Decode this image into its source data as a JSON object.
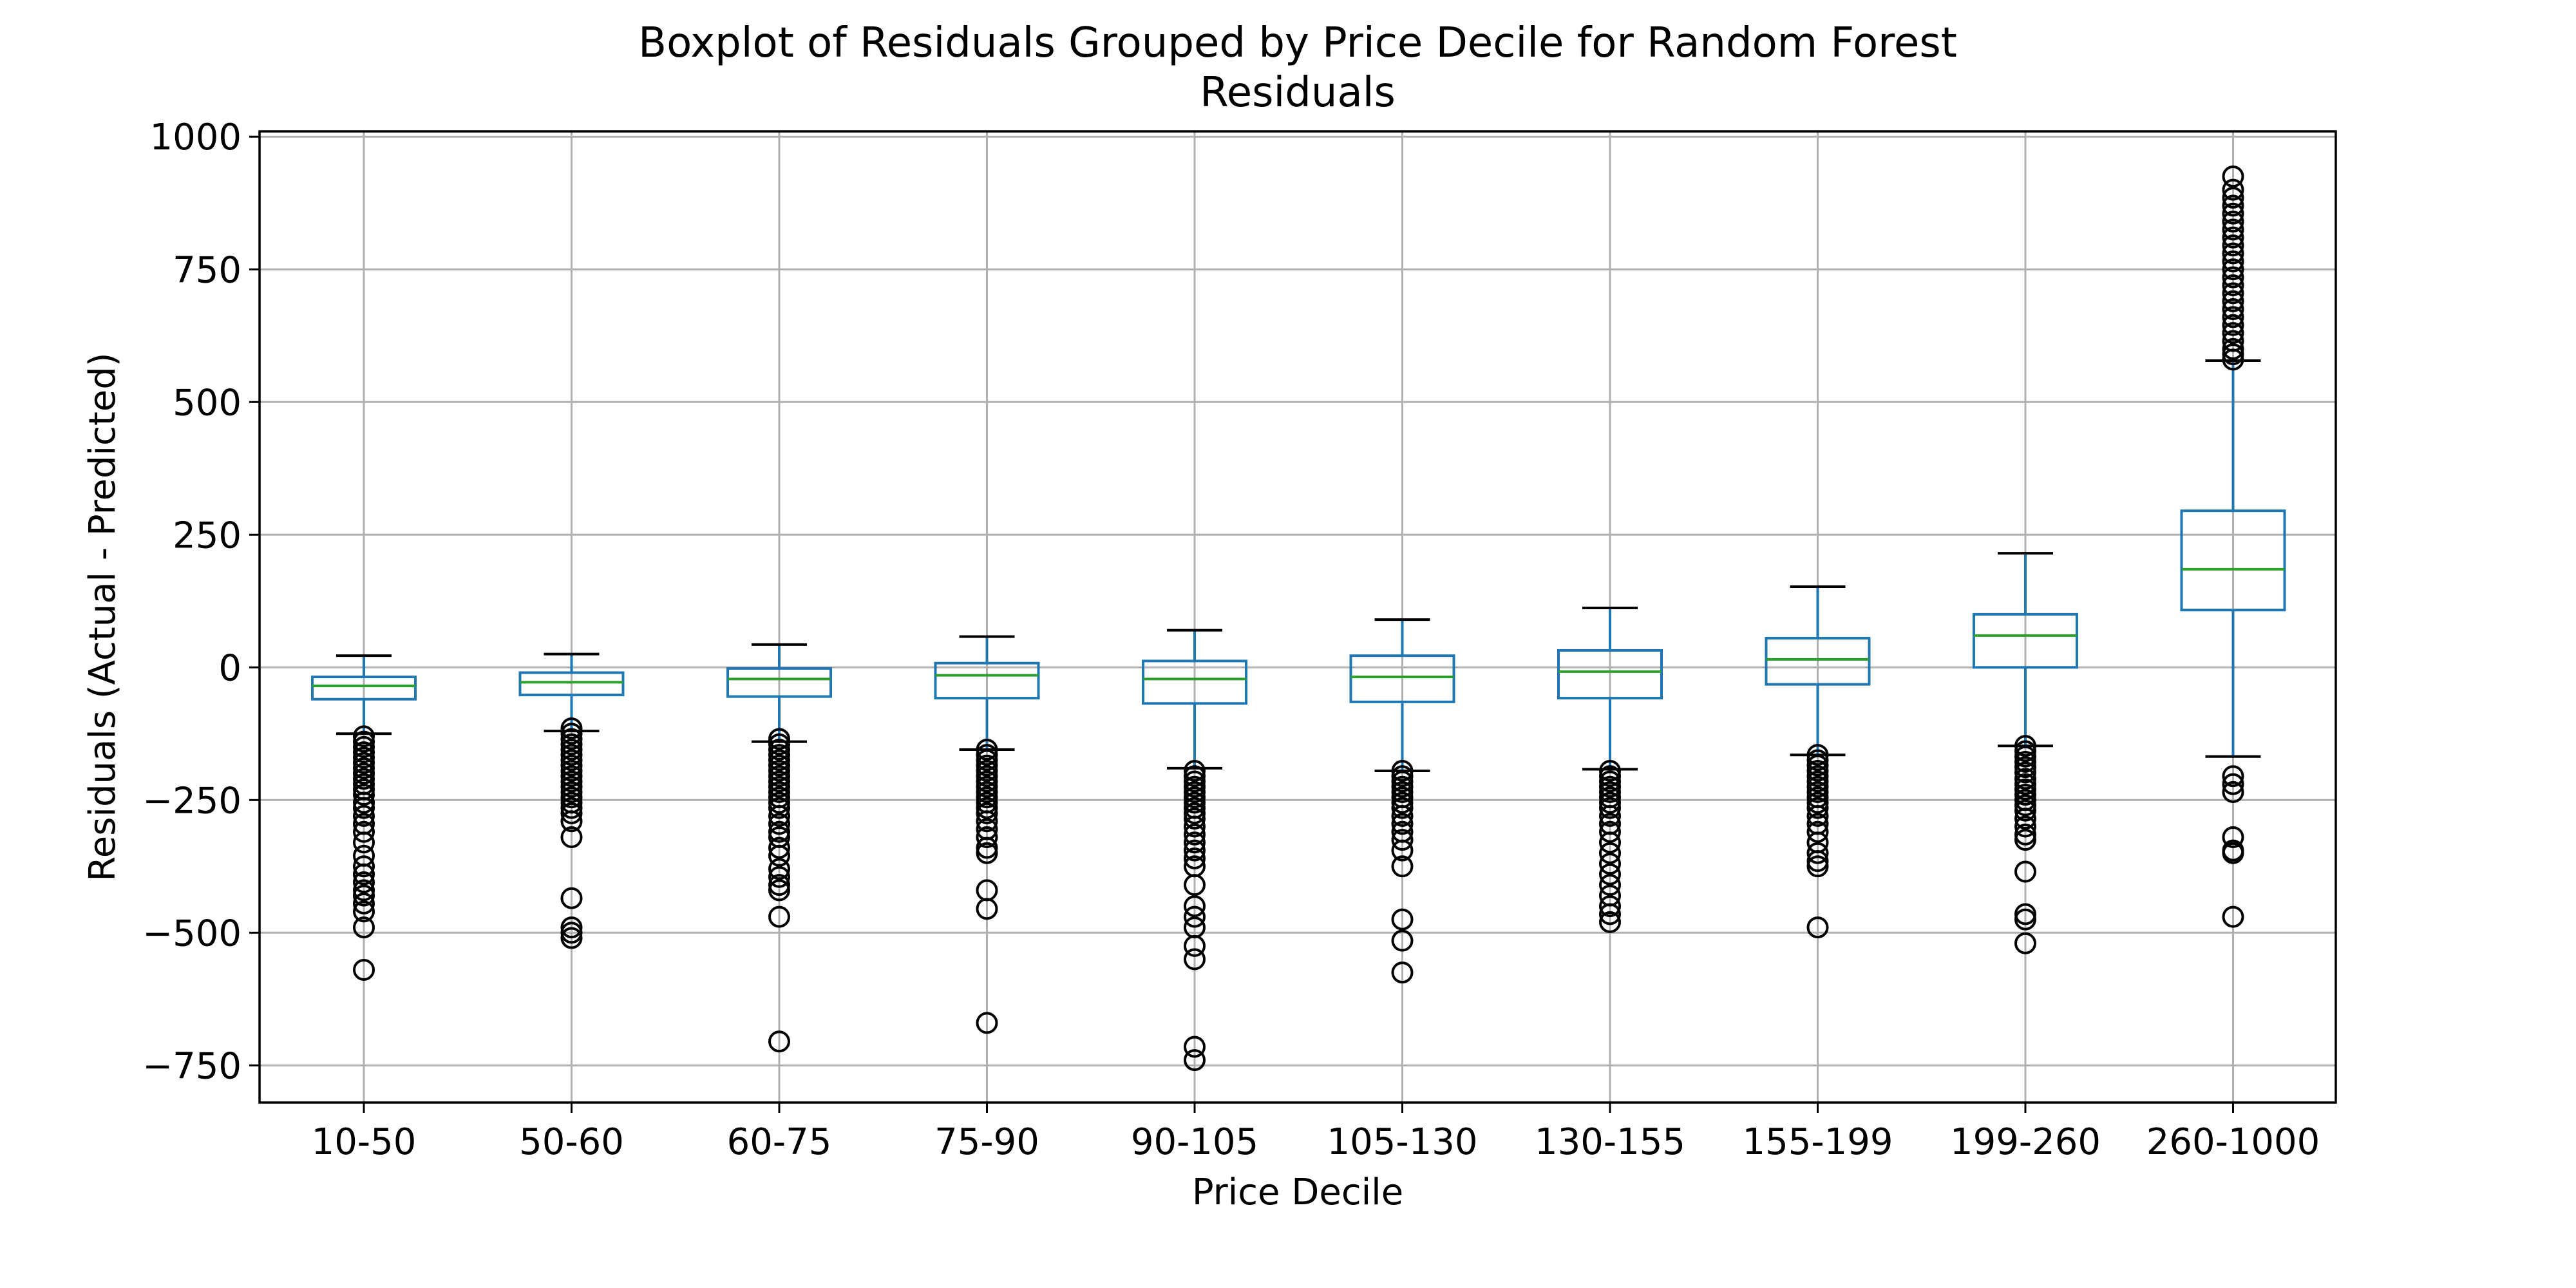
{
  "chart_data": {
    "type": "boxplot",
    "title_lines": [
      "Boxplot of Residuals Grouped by Price Decile for Random Forest",
      "Residuals"
    ],
    "xlabel": "Price Decile",
    "ylabel": "Residuals (Actual - Predicted)",
    "ylim": [
      -820,
      1010
    ],
    "yticks": [
      -750,
      -500,
      -250,
      0,
      250,
      500,
      750,
      1000
    ],
    "ytick_labels": [
      "−750",
      "−500",
      "−250",
      "0",
      "250",
      "500",
      "750",
      "1000"
    ],
    "grid": true,
    "colors": {
      "box": "#1f77b4",
      "median": "#2ca02c",
      "whisker_cap": "#000000",
      "flier": "#000000",
      "grid": "#b0b0b0"
    },
    "categories": [
      "10-50",
      "50-60",
      "60-75",
      "75-90",
      "90-105",
      "105-130",
      "130-155",
      "155-199",
      "199-260",
      "260-1000"
    ],
    "boxes": [
      {
        "category": "10-50",
        "whislo": -125,
        "q1": -60,
        "med": -35,
        "q3": -18,
        "whishi": 22,
        "fliers": [
          -130,
          -140,
          -150,
          -160,
          -170,
          -180,
          -190,
          -200,
          -210,
          -220,
          -230,
          -240,
          -255,
          -265,
          -280,
          -295,
          -310,
          -330,
          -355,
          -375,
          -390,
          -405,
          -420,
          -430,
          -445,
          -460,
          -490,
          -570
        ]
      },
      {
        "category": "50-60",
        "whislo": -120,
        "q1": -52,
        "med": -28,
        "q3": -10,
        "whishi": 25,
        "fliers": [
          -115,
          -125,
          -135,
          -145,
          -155,
          -165,
          -175,
          -185,
          -195,
          -205,
          -215,
          -225,
          -235,
          -245,
          -255,
          -265,
          -275,
          -290,
          -320,
          -435,
          -490,
          -500,
          -510
        ]
      },
      {
        "category": "60-75",
        "whislo": -140,
        "q1": -55,
        "med": -22,
        "q3": -2,
        "whishi": 43,
        "fliers": [
          -135,
          -145,
          -155,
          -165,
          -175,
          -185,
          -195,
          -205,
          -215,
          -225,
          -235,
          -245,
          -255,
          -265,
          -280,
          -295,
          -310,
          -320,
          -340,
          -355,
          -380,
          -395,
          -410,
          -420,
          -470,
          -705
        ]
      },
      {
        "category": "75-90",
        "whislo": -155,
        "q1": -58,
        "med": -15,
        "q3": 8,
        "whishi": 58,
        "fliers": [
          -155,
          -165,
          -175,
          -185,
          -195,
          -205,
          -215,
          -225,
          -235,
          -245,
          -255,
          -265,
          -275,
          -290,
          -305,
          -320,
          -340,
          -350,
          -420,
          -455,
          -670
        ]
      },
      {
        "category": "90-105",
        "whislo": -190,
        "q1": -68,
        "med": -22,
        "q3": 12,
        "whishi": 70,
        "fliers": [
          -195,
          -205,
          -215,
          -225,
          -235,
          -245,
          -255,
          -265,
          -275,
          -285,
          -300,
          -315,
          -330,
          -345,
          -360,
          -375,
          -410,
          -450,
          -470,
          -490,
          -525,
          -550,
          -715,
          -740
        ]
      },
      {
        "category": "105-130",
        "whislo": -195,
        "q1": -65,
        "med": -18,
        "q3": 22,
        "whishi": 90,
        "fliers": [
          -195,
          -205,
          -215,
          -225,
          -235,
          -245,
          -255,
          -265,
          -280,
          -295,
          -310,
          -325,
          -345,
          -375,
          -475,
          -515,
          -575
        ]
      },
      {
        "category": "130-155",
        "whislo": -192,
        "q1": -58,
        "med": -8,
        "q3": 32,
        "whishi": 112,
        "fliers": [
          -195,
          -205,
          -215,
          -225,
          -235,
          -245,
          -255,
          -265,
          -280,
          -295,
          -310,
          -330,
          -350,
          -370,
          -390,
          -410,
          -430,
          -450,
          -465,
          -480
        ]
      },
      {
        "category": "155-199",
        "whislo": -165,
        "q1": -32,
        "med": 15,
        "q3": 55,
        "whishi": 152,
        "fliers": [
          -165,
          -175,
          -185,
          -195,
          -205,
          -215,
          -225,
          -235,
          -245,
          -255,
          -265,
          -280,
          -295,
          -310,
          -330,
          -350,
          -365,
          -375,
          -490
        ]
      },
      {
        "category": "199-260",
        "whislo": -148,
        "q1": 0,
        "med": 60,
        "q3": 100,
        "whishi": 215,
        "fliers": [
          -148,
          -158,
          -168,
          -178,
          -188,
          -198,
          -210,
          -220,
          -230,
          -240,
          -250,
          -260,
          -270,
          -285,
          -300,
          -315,
          -325,
          -385,
          -465,
          -475,
          -520
        ]
      },
      {
        "category": "260-1000",
        "whislo": -168,
        "q1": 108,
        "med": 185,
        "q3": 295,
        "whishi": 578,
        "fliers": [
          580,
          590,
          600,
          615,
          630,
          645,
          660,
          675,
          690,
          705,
          720,
          735,
          750,
          765,
          780,
          795,
          810,
          825,
          840,
          855,
          870,
          885,
          900,
          925,
          -205,
          -220,
          -235,
          -320,
          -345,
          -350,
          -470
        ]
      }
    ]
  }
}
